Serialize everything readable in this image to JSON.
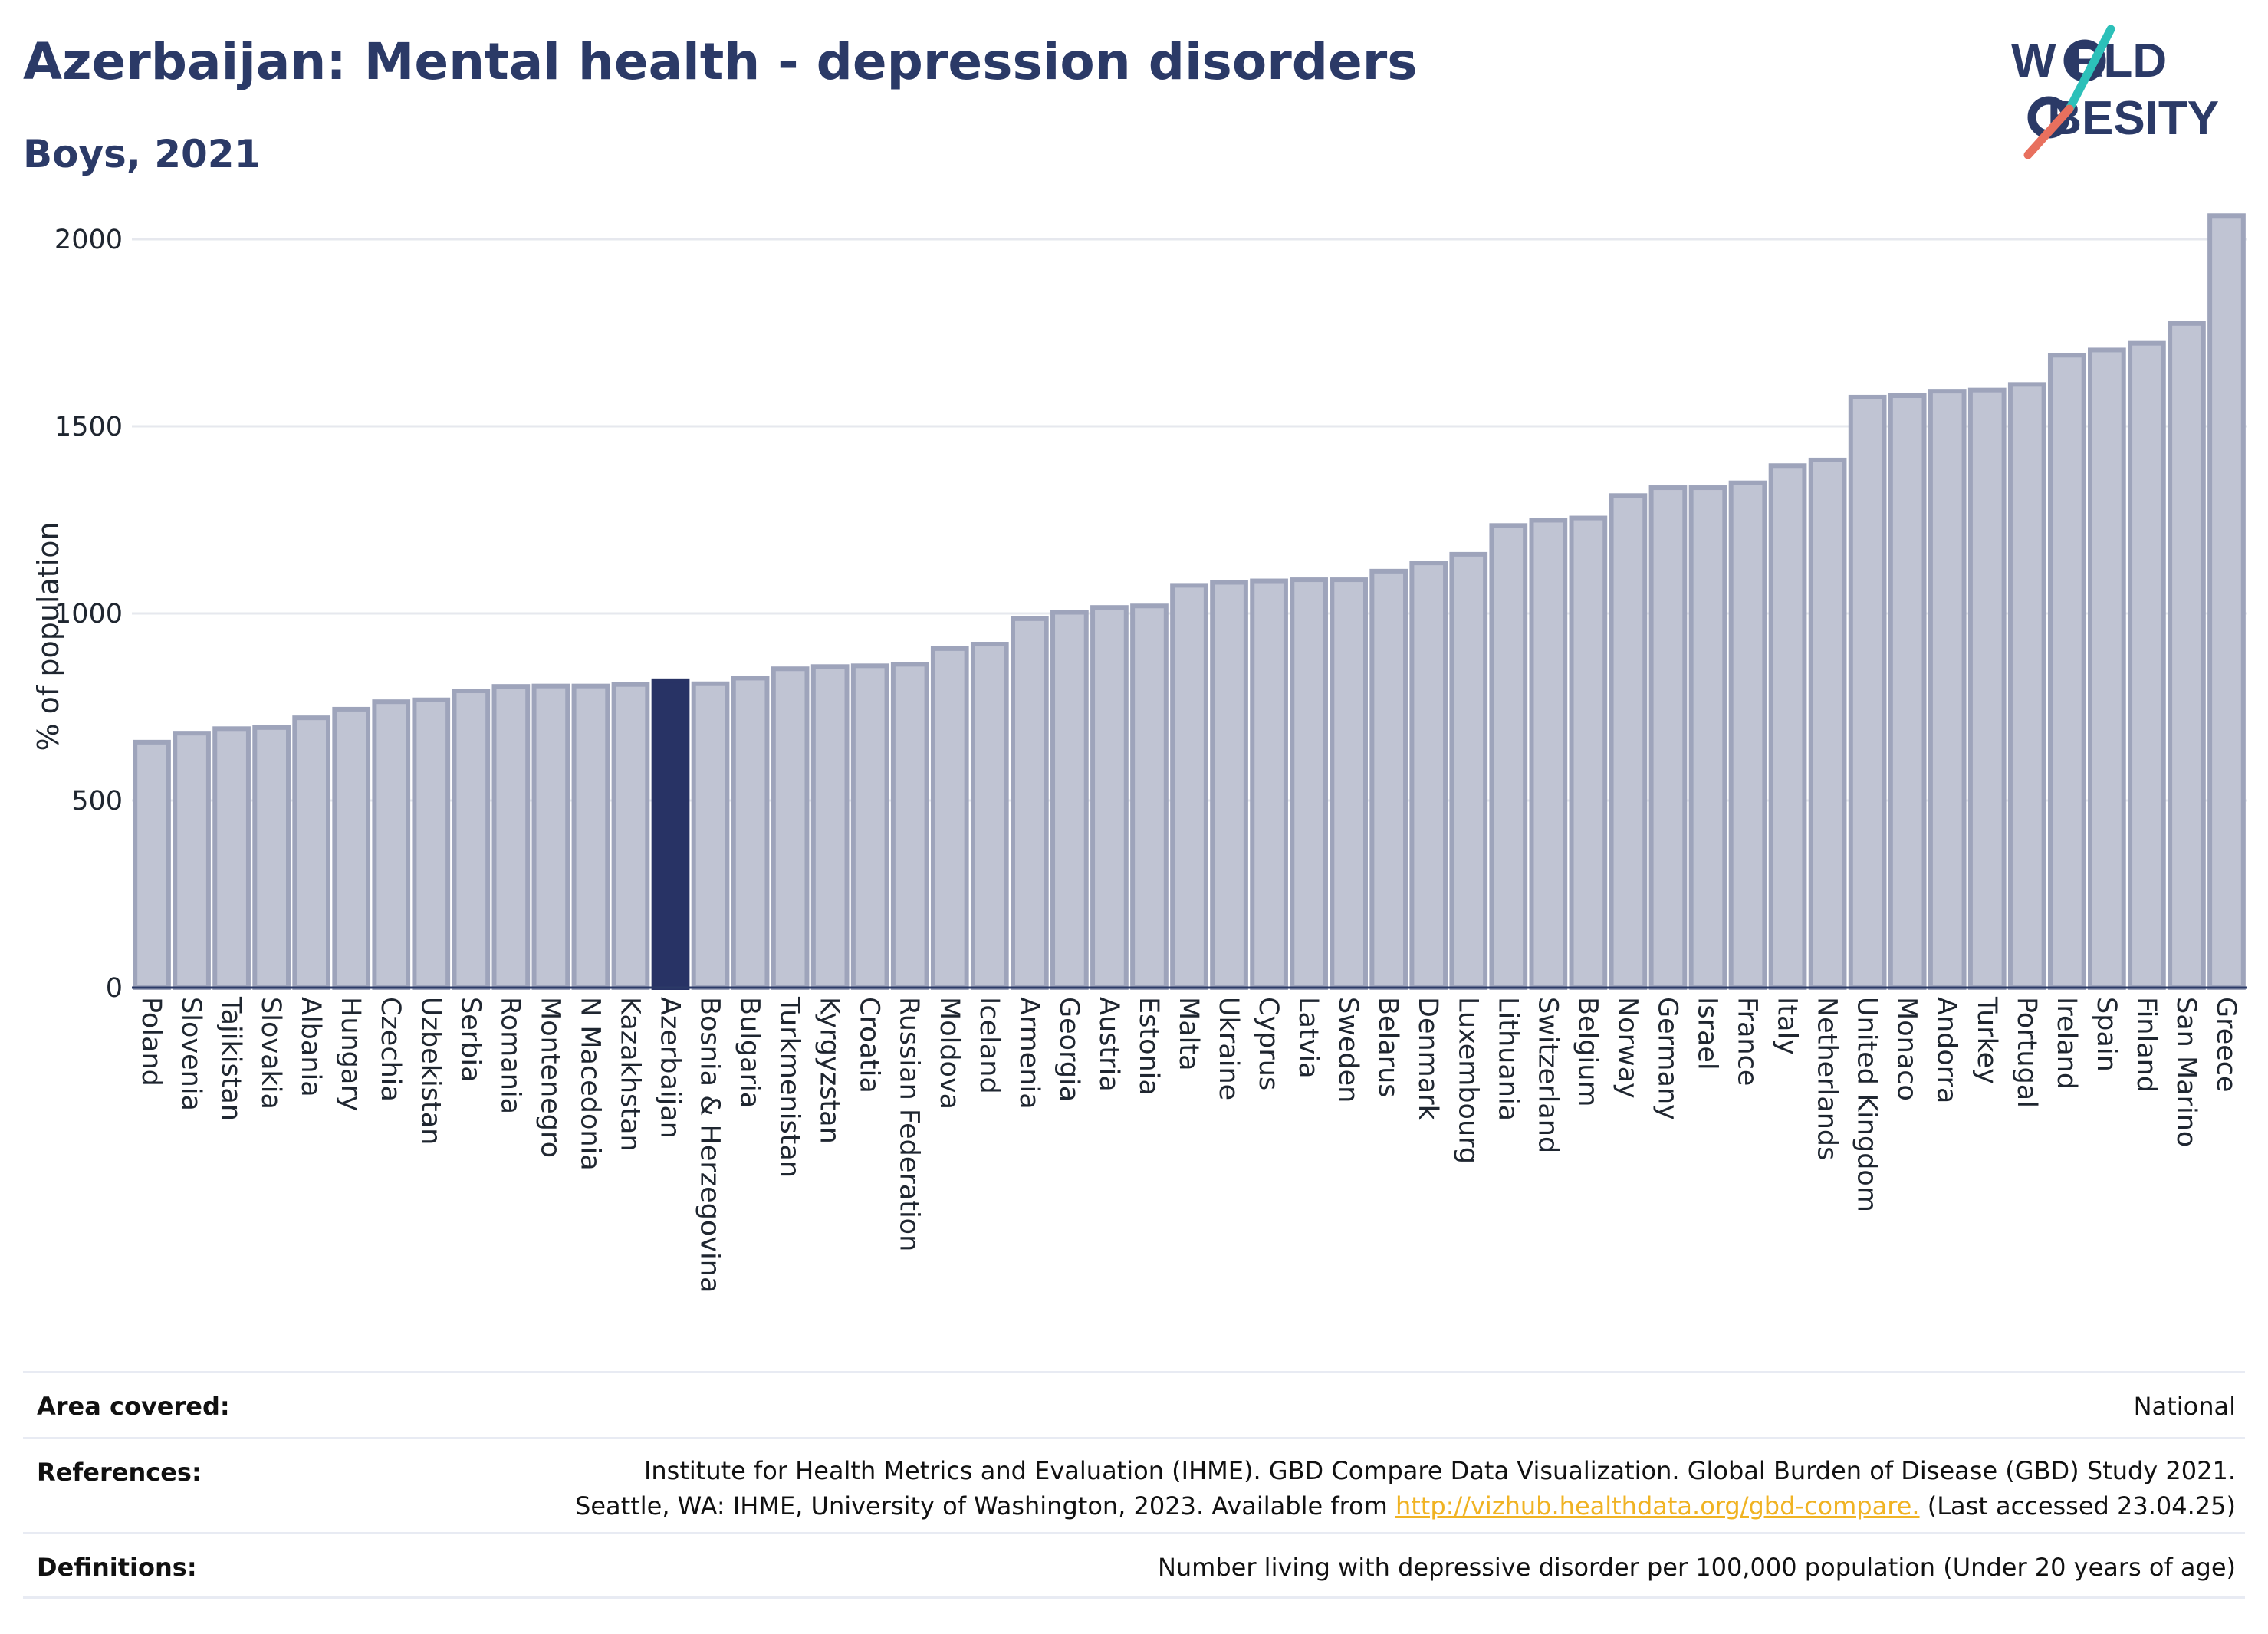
{
  "title": "Azerbaijan: Mental health - depression disorders",
  "subtitle": "Boys, 2021",
  "logo": {
    "line1": "W RLD",
    "line2": " BESITY"
  },
  "colors": {
    "bar_fill": "#c0c4d3",
    "bar_stroke": "#9ea4bb",
    "highlight": "#283365",
    "grid": "#e6e8ee",
    "title": "#2b3a67",
    "logo_teal": "#2cc0b9",
    "logo_red": "#e8705e",
    "link": "#f0b323"
  },
  "chart_data": {
    "type": "bar",
    "ylabel": "% of population",
    "ylim": [
      0,
      2150
    ],
    "yticks": [
      0,
      500,
      1000,
      1500,
      2000
    ],
    "grid": true,
    "highlight": "Azerbaijan",
    "categories": [
      "Poland",
      "Slovenia",
      "Tajikistan",
      "Slovakia",
      "Albania",
      "Hungary",
      "Czechia",
      "Uzbekistan",
      "Serbia",
      "Romania",
      "Montenegro",
      "N Macedonia",
      "Kazakhstan",
      "Azerbaijan",
      "Bosnia & Herzegovina",
      "Bulgaria",
      "Turkmenistan",
      "Kyrgyzstan",
      "Croatia",
      "Russian Federation",
      "Moldova",
      "Iceland",
      "Armenia",
      "Georgia",
      "Austria",
      "Estonia",
      "Malta",
      "Ukraine",
      "Cyprus",
      "Latvia",
      "Sweden",
      "Belarus",
      "Denmark",
      "Luxembourg",
      "Lithuania",
      "Switzerland",
      "Belgium",
      "Norway",
      "Germany",
      "Israel",
      "France",
      "Italy",
      "Netherlands",
      "United Kingdom",
      "Monaco",
      "Andorra",
      "Turkey",
      "Portugal",
      "Ireland",
      "Spain",
      "Finland",
      "San Marino",
      "Greece"
    ],
    "values": [
      656,
      680,
      692,
      695,
      721,
      744,
      764,
      769,
      793,
      805,
      806,
      806,
      810,
      820,
      812,
      827,
      852,
      858,
      860,
      864,
      906,
      918,
      986,
      1003,
      1016,
      1020,
      1075,
      1083,
      1087,
      1090,
      1090,
      1113,
      1135,
      1158,
      1235,
      1249,
      1255,
      1315,
      1336,
      1336,
      1349,
      1395,
      1410,
      1578,
      1582,
      1594,
      1597,
      1612,
      1690,
      1704,
      1722,
      1775,
      2063
    ]
  },
  "info": {
    "area_label": "Area covered:",
    "area_value": "National",
    "references_label": "References:",
    "references_line1": "Institute for Health Metrics and Evaluation (IHME). GBD Compare Data Visualization. Global Burden of Disease (GBD) Study 2021.",
    "references_line2_pre": "Seattle, WA: IHME, University of Washington, 2023. Available from ",
    "references_link": "http://vizhub.healthdata.org/gbd-compare.",
    "references_line2_post": " (Last accessed 23.04.25)",
    "definitions_label": "Definitions:",
    "definitions_value": "Number living with depressive disorder per 100,000 population (Under 20 years of age)"
  }
}
